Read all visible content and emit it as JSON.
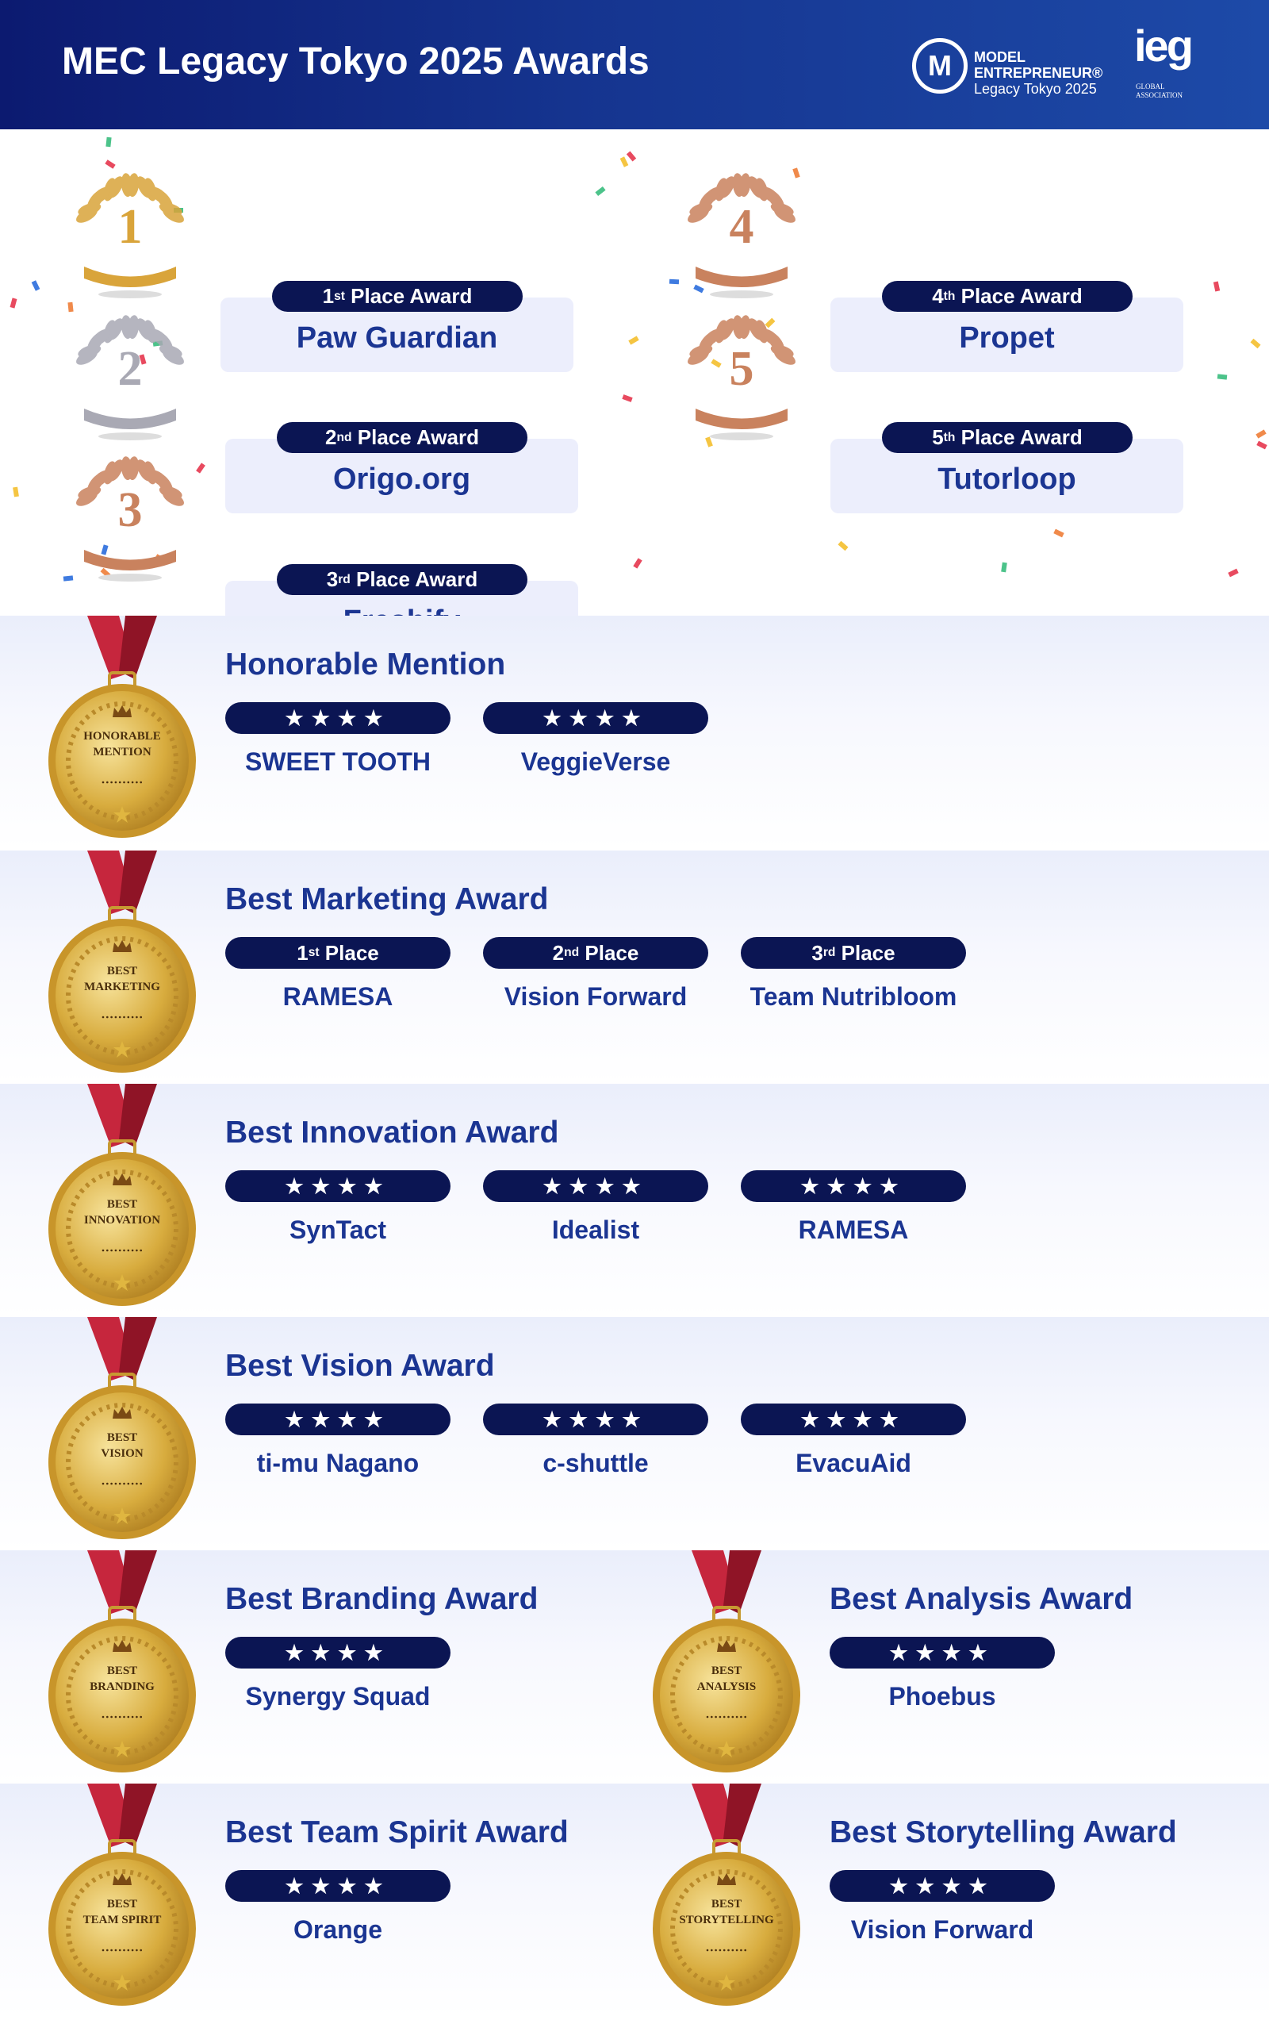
{
  "header": {
    "title": "MEC Legacy Tokyo 2025 Awards",
    "logo_mc": {
      "mark": "MC",
      "line1": "MODEL",
      "line2": "ENTREPRENEUR®",
      "line3": "Legacy Tokyo 2025"
    },
    "logo_ieg": {
      "mark": "ieg",
      "sub1": "GLOBAL",
      "sub2": "ASSOCIATION"
    }
  },
  "podium": [
    {
      "number": "1",
      "ordinal": "1",
      "suffix": "st",
      "label": " Place Award",
      "name": "Paw Guardian",
      "color": "#d9a43a"
    },
    {
      "number": "2",
      "ordinal": "2",
      "suffix": "nd",
      "label": " Place Award",
      "name": "Origo.org",
      "color": "#a9a9b4"
    },
    {
      "number": "3",
      "ordinal": "3",
      "suffix": "rd",
      "label": " Place Award",
      "name": "Freshify",
      "color": "#c9825e"
    },
    {
      "number": "4",
      "ordinal": "4",
      "suffix": "th",
      "label": " Place Award",
      "name": "Propet",
      "color": "#c9825e"
    },
    {
      "number": "5",
      "ordinal": "5",
      "suffix": "th",
      "label": " Place Award",
      "name": "Tutorloop",
      "color": "#c9825e"
    }
  ],
  "sections": [
    {
      "columns": [
        {
          "title": "Honorable Mention",
          "medal": [
            "HONORABLE",
            "MENTION"
          ],
          "entries": [
            {
              "stars": "★★★★",
              "name": "SWEET TOOTH"
            },
            {
              "stars": "★★★★",
              "name": "VeggieVerse"
            }
          ]
        }
      ]
    },
    {
      "columns": [
        {
          "title": "Best Marketing Award",
          "medal": [
            "BEST",
            "MARKETING"
          ],
          "entries": [
            {
              "ordinal": "1",
              "suffix": "st",
              "label": " Place",
              "name": "RAMESA"
            },
            {
              "ordinal": "2",
              "suffix": "nd",
              "label": " Place",
              "name": "Vision Forward"
            },
            {
              "ordinal": "3",
              "suffix": "rd",
              "label": " Place",
              "name": "Team Nutribloom"
            }
          ]
        }
      ]
    },
    {
      "columns": [
        {
          "title": "Best Innovation Award",
          "medal": [
            "BEST",
            "INNOVATION"
          ],
          "entries": [
            {
              "stars": "★★★★",
              "name": "SynTact"
            },
            {
              "stars": "★★★★",
              "name": "Idealist"
            },
            {
              "stars": "★★★★",
              "name": "RAMESA"
            }
          ]
        }
      ]
    },
    {
      "columns": [
        {
          "title": "Best Vision Award",
          "medal": [
            "BEST",
            "VISION"
          ],
          "entries": [
            {
              "stars": "★★★★",
              "name": "ti-mu Nagano"
            },
            {
              "stars": "★★★★",
              "name": "c-shuttle"
            },
            {
              "stars": "★★★★",
              "name": "EvacuAid"
            }
          ]
        }
      ]
    },
    {
      "columns": [
        {
          "title": "Best Branding Award",
          "medal": [
            "BEST",
            "BRANDING"
          ],
          "entries": [
            {
              "stars": "★★★★",
              "name": "Synergy Squad"
            }
          ]
        },
        {
          "title": "Best Analysis Award",
          "medal": [
            "BEST",
            "ANALYSIS"
          ],
          "entries": [
            {
              "stars": "★★★★",
              "name": "Phoebus"
            }
          ]
        }
      ]
    },
    {
      "columns": [
        {
          "title": "Best Team Spirit Award",
          "medal": [
            "BEST",
            "TEAM SPIRIT"
          ],
          "entries": [
            {
              "stars": "★★★★",
              "name": "Orange"
            }
          ]
        },
        {
          "title": "Best Storytelling Award",
          "medal": [
            "BEST",
            "STORYTELLING"
          ],
          "entries": [
            {
              "stars": "★★★★",
              "name": "Vision Forward"
            }
          ]
        }
      ]
    }
  ],
  "colors": {
    "navy": "#0b1553",
    "title_blue": "#1b3592",
    "gold": "#d9a43a",
    "ribbon": "#a0182c"
  }
}
